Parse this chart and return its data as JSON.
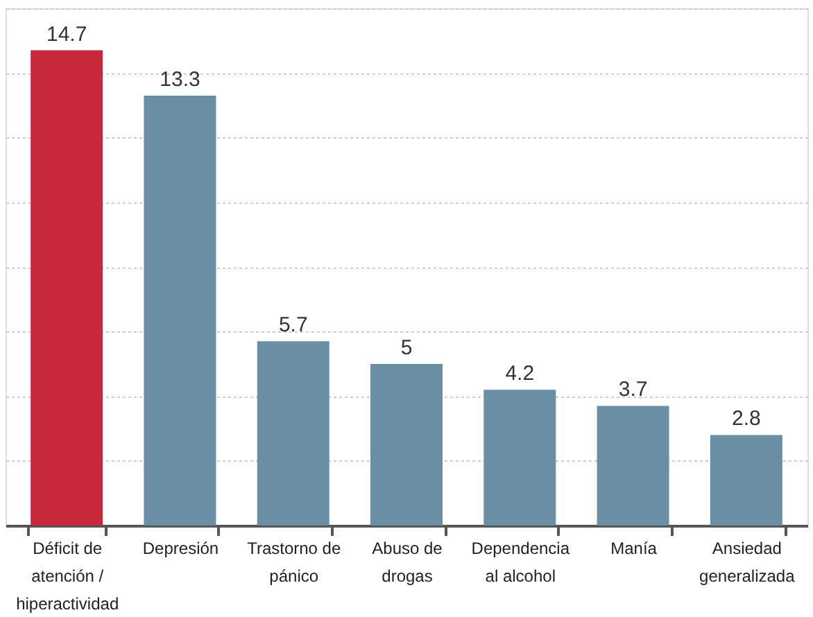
{
  "chart_data": {
    "type": "bar",
    "categories": [
      "Déficit de atención / hiperactividad",
      "Depresión",
      "Trastorno de pánico",
      "Abuso de drogas",
      "Dependencia al alcohol",
      "Manía",
      "Ansiedad generalizada"
    ],
    "values": [
      14.7,
      13.3,
      5.7,
      5,
      4.2,
      3.7,
      2.8
    ],
    "colors": [
      "#c8283c",
      "#6a8ea3",
      "#6a8ea3",
      "#6a8ea3",
      "#6a8ea3",
      "#6a8ea3",
      "#6a8ea3"
    ],
    "data_labels": true,
    "ylim": [
      0,
      16
    ],
    "yticks": [
      {
        "value": 0,
        "label": null
      },
      {
        "value": 2,
        "label": null
      },
      {
        "value": 4,
        "label": null
      },
      {
        "value": 6,
        "label": null
      },
      {
        "value": 8,
        "label": null
      },
      {
        "value": 10,
        "label": null
      },
      {
        "value": 12,
        "label": null
      },
      {
        "value": 14,
        "label": null
      },
      {
        "value": 16,
        "label": null
      }
    ],
    "grid": "y",
    "tick_labels": "x"
  }
}
